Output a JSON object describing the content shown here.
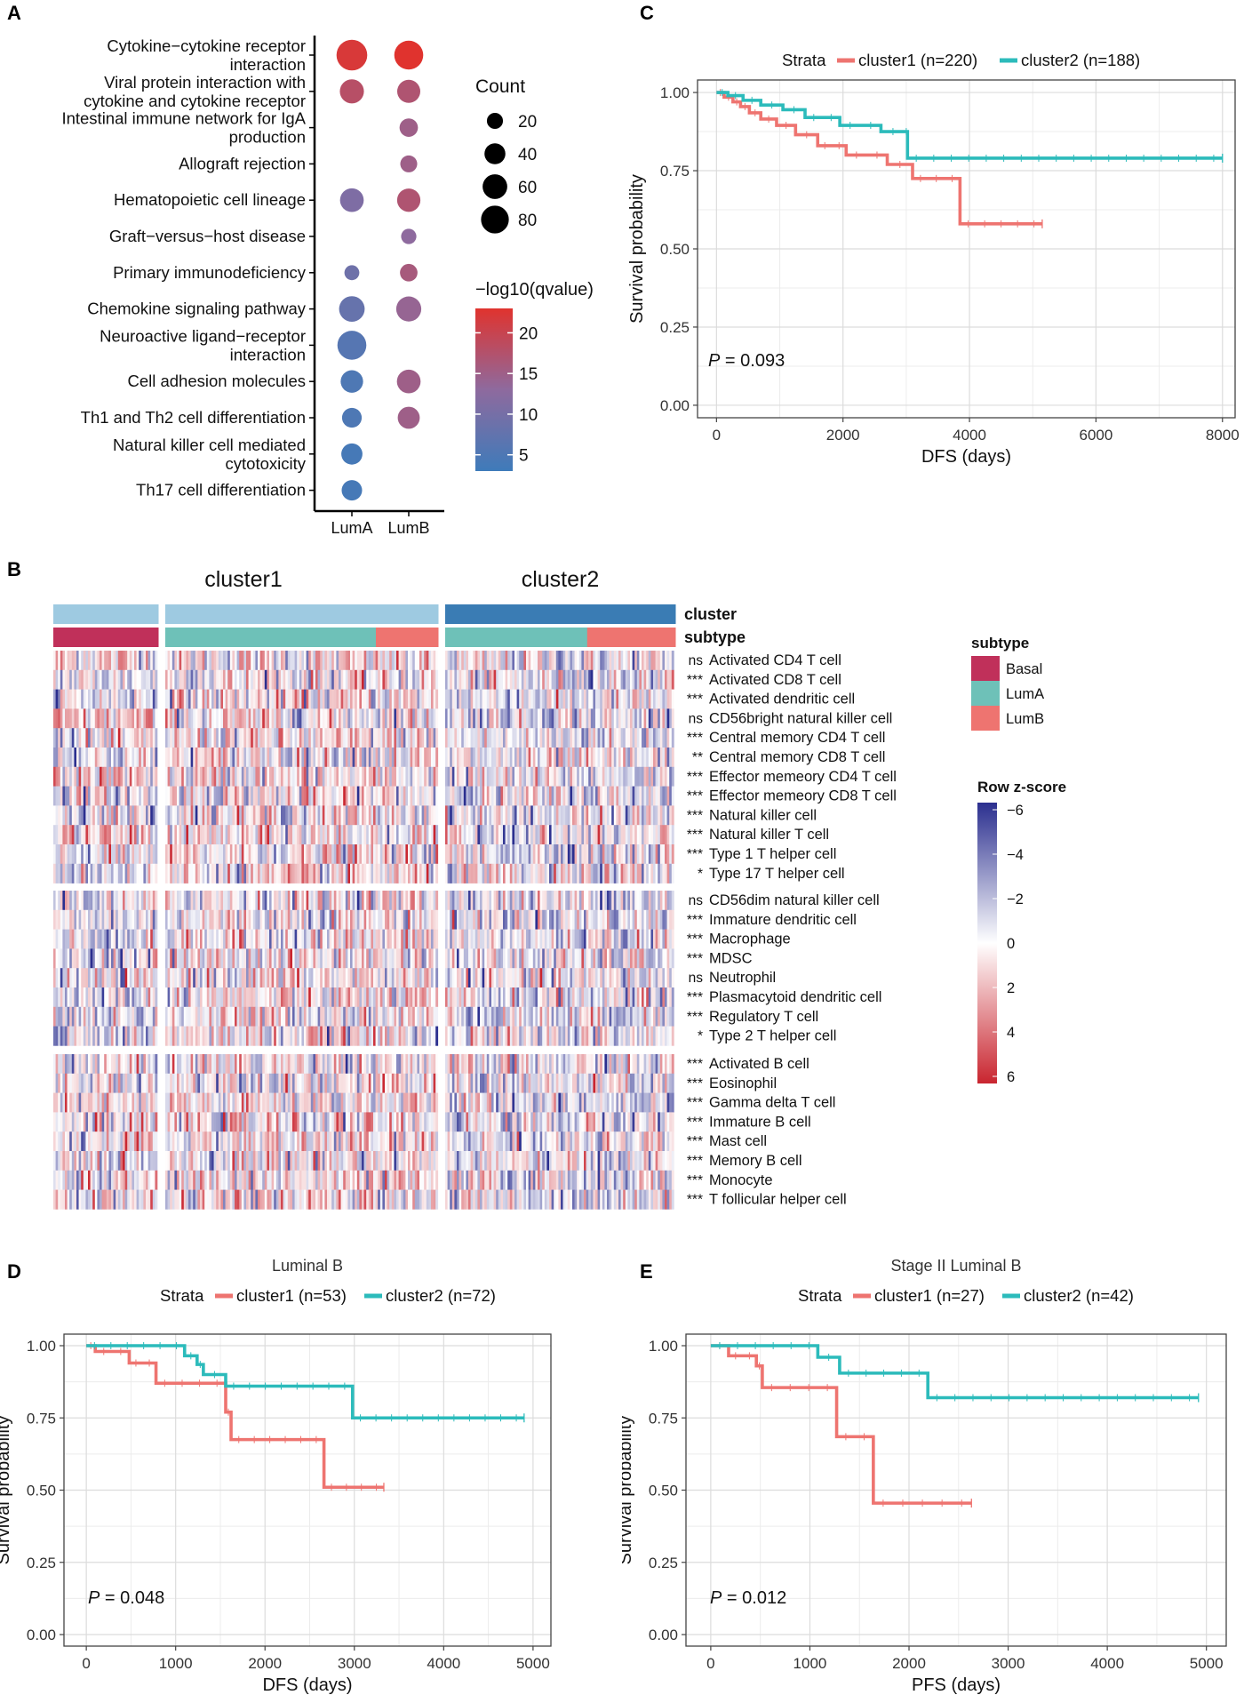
{
  "panels": {
    "A": "A",
    "B": "B",
    "C": "C",
    "D": "D",
    "E": "E"
  },
  "colors": {
    "cluster1": "#EE7470",
    "cluster2": "#2CBBBB",
    "basal": "#C0305A",
    "lumA": "#6EC1B8",
    "lumB": "#EE7470",
    "cluster_bar1": "#9ECAE1",
    "cluster_bar2": "#3A7CB4",
    "heat_low": "#2B2F8F",
    "heat_high": "#C9252F"
  },
  "chart_data": [
    {
      "id": "A",
      "type": "scatter",
      "subtype": "dotplot",
      "columns": [
        "LumA",
        "LumB"
      ],
      "rows": [
        "Cytokine−cytokine receptor\ninteraction",
        "Viral protein interaction with\ncytokine and cytokine receptor",
        "Intestinal immune network for IgA\nproduction",
        "Allograft rejection",
        "Hematopoietic cell lineage",
        "Graft−versus−host disease",
        "Primary immunodeficiency",
        "Chemokine signaling pathway",
        "Neuroactive ligand−receptor\ninteraction",
        "Cell adhesion molecules",
        "Th1 and Th2 cell differentiation",
        "Natural killer cell mediated\ncytotoxicity",
        "Th17 cell differentiation"
      ],
      "points": [
        {
          "row": 0,
          "col": 0,
          "count": 90,
          "q": 22
        },
        {
          "row": 0,
          "col": 1,
          "count": 78,
          "q": 23
        },
        {
          "row": 1,
          "col": 0,
          "count": 50,
          "q": 18
        },
        {
          "row": 1,
          "col": 1,
          "count": 45,
          "q": 17
        },
        {
          "row": 2,
          "col": 1,
          "count": 25,
          "q": 15
        },
        {
          "row": 3,
          "col": 1,
          "count": 20,
          "q": 15
        },
        {
          "row": 4,
          "col": 0,
          "count": 48,
          "q": 11
        },
        {
          "row": 4,
          "col": 1,
          "count": 46,
          "q": 17
        },
        {
          "row": 5,
          "col": 1,
          "count": 15,
          "q": 13
        },
        {
          "row": 6,
          "col": 0,
          "count": 14,
          "q": 9
        },
        {
          "row": 6,
          "col": 1,
          "count": 22,
          "q": 16
        },
        {
          "row": 7,
          "col": 0,
          "count": 58,
          "q": 8
        },
        {
          "row": 7,
          "col": 1,
          "count": 55,
          "q": 14
        },
        {
          "row": 8,
          "col": 0,
          "count": 78,
          "q": 6
        },
        {
          "row": 9,
          "col": 0,
          "count": 42,
          "q": 5
        },
        {
          "row": 9,
          "col": 1,
          "count": 48,
          "q": 15
        },
        {
          "row": 10,
          "col": 0,
          "count": 30,
          "q": 5
        },
        {
          "row": 10,
          "col": 1,
          "count": 40,
          "q": 15
        },
        {
          "row": 11,
          "col": 0,
          "count": 36,
          "q": 4
        },
        {
          "row": 12,
          "col": 0,
          "count": 33,
          "q": 4
        }
      ],
      "size_legend": {
        "title": "Count",
        "values": [
          20,
          40,
          60,
          80
        ]
      },
      "color_legend": {
        "title": "−log10(qvalue)",
        "range": [
          3,
          23
        ],
        "ticks": [
          20,
          15,
          10,
          5
        ]
      }
    },
    {
      "id": "C",
      "type": "line",
      "subtype": "kaplan-meier",
      "title": "",
      "legend_title": "Strata",
      "series": [
        {
          "name": "cluster1 (n=220)",
          "x": [
            0,
            120,
            260,
            380,
            520,
            700,
            950,
            1250,
            1600,
            2050,
            2700,
            3100,
            3850,
            5150
          ],
          "y": [
            1.0,
            0.985,
            0.97,
            0.955,
            0.935,
            0.915,
            0.895,
            0.865,
            0.83,
            0.8,
            0.77,
            0.725,
            0.58,
            0.58
          ]
        },
        {
          "name": "cluster2 (n=188)",
          "x": [
            0,
            180,
            420,
            700,
            1050,
            1400,
            1950,
            2600,
            2980,
            3020,
            8000
          ],
          "y": [
            1.0,
            0.99,
            0.975,
            0.96,
            0.945,
            0.92,
            0.895,
            0.875,
            0.875,
            0.79,
            0.79
          ]
        }
      ],
      "xlabel": "DFS (days)",
      "ylabel": "Survival probability",
      "xlim": [
        -300,
        8200
      ],
      "ylim": [
        -0.04,
        1.04
      ],
      "xticks": [
        0,
        2000,
        4000,
        6000,
        8000
      ],
      "yticks": [
        "0.00",
        "0.25",
        "0.50",
        "0.75",
        "1.00"
      ],
      "pvalue": "0.093"
    },
    {
      "id": "D",
      "type": "line",
      "subtype": "kaplan-meier",
      "title": "Luminal B",
      "legend_title": "Strata",
      "series": [
        {
          "name": "cluster1 (n=53)",
          "x": [
            0,
            100,
            480,
            780,
            1560,
            1620,
            2660,
            3330
          ],
          "y": [
            1.0,
            0.98,
            0.94,
            0.87,
            0.77,
            0.675,
            0.51,
            0.51
          ]
        },
        {
          "name": "cluster2 (n=72)",
          "x": [
            0,
            1100,
            1240,
            1310,
            1560,
            2980,
            4900
          ],
          "y": [
            1.0,
            0.965,
            0.935,
            0.9,
            0.86,
            0.75,
            0.75
          ]
        }
      ],
      "xlabel": "DFS (days)",
      "ylabel": "Survival probability",
      "xlim": [
        -250,
        5200
      ],
      "ylim": [
        -0.04,
        1.04
      ],
      "xticks": [
        0,
        1000,
        2000,
        3000,
        4000,
        5000
      ],
      "yticks": [
        "0.00",
        "0.25",
        "0.50",
        "0.75",
        "1.00"
      ],
      "pvalue": "0.048"
    },
    {
      "id": "E",
      "type": "line",
      "subtype": "kaplan-meier",
      "title": "Stage II Luminal B",
      "legend_title": "Strata",
      "series": [
        {
          "name": "cluster1 (n=27)",
          "x": [
            0,
            180,
            460,
            520,
            1270,
            1640,
            2630
          ],
          "y": [
            1.0,
            0.965,
            0.93,
            0.855,
            0.685,
            0.455,
            0.455
          ]
        },
        {
          "name": "cluster2 (n=42)",
          "x": [
            0,
            1080,
            1300,
            2190,
            4920
          ],
          "y": [
            1.0,
            0.96,
            0.905,
            0.82,
            0.82
          ]
        }
      ],
      "xlabel": "PFS (days)",
      "ylabel": "Survival probability",
      "xlim": [
        -250,
        5200
      ],
      "ylim": [
        -0.04,
        1.04
      ],
      "xticks": [
        0,
        1000,
        2000,
        3000,
        4000,
        5000
      ],
      "yticks": [
        "0.00",
        "0.25",
        "0.50",
        "0.75",
        "1.00"
      ],
      "pvalue": "0.012"
    },
    {
      "id": "B",
      "type": "heatmap",
      "column_titles": [
        "cluster1",
        "cluster2"
      ],
      "annotation_names": [
        "cluster",
        "subtype"
      ],
      "column_groups": [
        {
          "cluster": "cluster1",
          "subtype": "Basal",
          "n": 47
        },
        {
          "cluster": "cluster1",
          "subtype": "LumA",
          "n": 88
        },
        {
          "cluster": "cluster1",
          "subtype": "LumB",
          "n": 26
        },
        {
          "cluster": "cluster2",
          "subtype": "LumA",
          "n": 58
        },
        {
          "cluster": "cluster2",
          "subtype": "LumB",
          "n": 36
        }
      ],
      "row_blocks": [
        [
          {
            "sig": "ns",
            "label": "Activated CD4 T cell"
          },
          {
            "sig": "***",
            "label": "Activated CD8 T cell"
          },
          {
            "sig": "***",
            "label": "Activated dendritic cell"
          },
          {
            "sig": "ns",
            "label": "CD56bright natural killer cell"
          },
          {
            "sig": "***",
            "label": "Central memory CD4 T cell"
          },
          {
            "sig": "**",
            "label": "Central memory CD8 T cell"
          },
          {
            "sig": "***",
            "label": "Effector memeory CD4 T cell"
          },
          {
            "sig": "***",
            "label": "Effector memeory CD8 T cell"
          },
          {
            "sig": "***",
            "label": "Natural killer cell"
          },
          {
            "sig": "***",
            "label": "Natural killer T cell"
          },
          {
            "sig": "***",
            "label": "Type 1 T helper cell"
          },
          {
            "sig": "*",
            "label": "Type 17 T helper cell"
          }
        ],
        [
          {
            "sig": "ns",
            "label": "CD56dim natural killer cell"
          },
          {
            "sig": "***",
            "label": "Immature dendritic cell"
          },
          {
            "sig": "***",
            "label": "Macrophage"
          },
          {
            "sig": "***",
            "label": "MDSC"
          },
          {
            "sig": "ns",
            "label": "Neutrophil"
          },
          {
            "sig": "***",
            "label": "Plasmacytoid dendritic cell"
          },
          {
            "sig": "***",
            "label": "Regulatory T cell"
          },
          {
            "sig": "*",
            "label": "Type 2 T helper cell"
          }
        ],
        [
          {
            "sig": "***",
            "label": "Activated B cell"
          },
          {
            "sig": "***",
            "label": "Eosinophil"
          },
          {
            "sig": "***",
            "label": "Gamma delta T cell"
          },
          {
            "sig": "***",
            "label": "Immature  B cell"
          },
          {
            "sig": "***",
            "label": "Mast cell"
          },
          {
            "sig": "***",
            "label": "Memory B cell"
          },
          {
            "sig": "***",
            "label": "Monocyte"
          },
          {
            "sig": "***",
            "label": "T follicular helper cell"
          }
        ]
      ],
      "subtype_legend": {
        "title": "subtype",
        "items": [
          "Basal",
          "LumA",
          "LumB"
        ]
      },
      "zscore_legend": {
        "title": "Row z-score",
        "ticks": [
          "−6",
          "−4",
          "−2",
          "0",
          "2",
          "4",
          "6"
        ],
        "range": [
          -6,
          6
        ]
      }
    }
  ]
}
